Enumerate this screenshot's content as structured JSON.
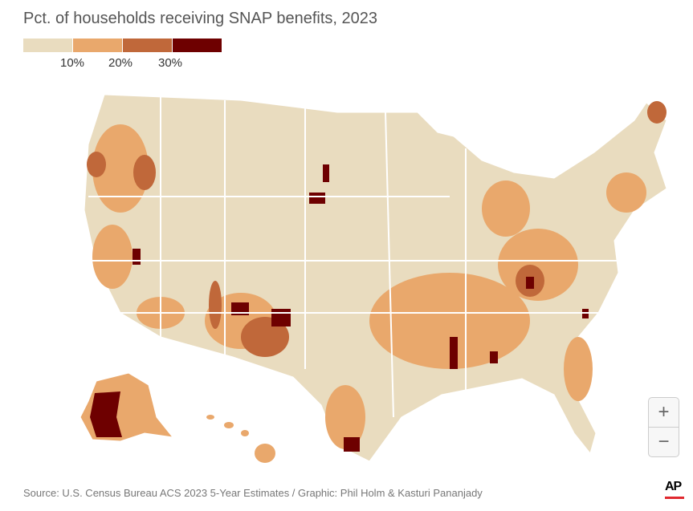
{
  "title": "Pct. of households receiving SNAP benefits, 2023",
  "legend": {
    "colors": [
      "#e9dcbf",
      "#e9a86c",
      "#c0683a",
      "#6e0000"
    ],
    "ticks": [
      "10%",
      "20%",
      "30%"
    ]
  },
  "map": {
    "background": "#ffffff",
    "state_border": "#ffffff"
  },
  "zoom": {
    "in_label": "+",
    "out_label": "−"
  },
  "source": "Source: U.S. Census Bureau ACS 2023 5-Year Estimates / Graphic: Phil Holm & Kasturi Pananjady",
  "logo": "AP"
}
